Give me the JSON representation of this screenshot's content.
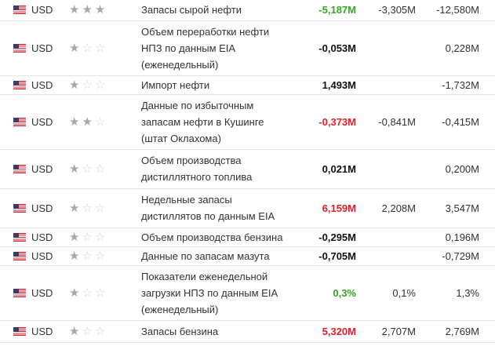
{
  "rows": [
    {
      "currency": "USD",
      "importance": 3,
      "event": [
        "Запасы сырой нефти"
      ],
      "actual": "-5,187M",
      "actual_color": "green",
      "forecast": "-3,305M",
      "previous": "-12,580M"
    },
    {
      "currency": "USD",
      "importance": 1,
      "event": [
        "Объем переработки нефти",
        "НПЗ по данным EIA",
        "(еженедельный)"
      ],
      "actual": "-0,053M",
      "actual_color": "black",
      "forecast": "",
      "previous": "0,228M"
    },
    {
      "currency": "USD",
      "importance": 1,
      "event": [
        "Импорт нефти"
      ],
      "actual": "1,493M",
      "actual_color": "black",
      "forecast": "",
      "previous": "-1,732M"
    },
    {
      "currency": "USD",
      "importance": 2,
      "event": [
        "Данные по избыточным",
        "запасам нефти в Кушинге",
        "(штат Оклахома)"
      ],
      "actual": "-0,373M",
      "actual_color": "red",
      "forecast": "-0,841M",
      "previous": "-0,415M"
    },
    {
      "currency": "USD",
      "importance": 1,
      "event": [
        "Объем производства",
        "дистиллятного топлива"
      ],
      "actual": "0,021M",
      "actual_color": "black",
      "forecast": "",
      "previous": "0,200M"
    },
    {
      "currency": "USD",
      "importance": 1,
      "event": [
        "Недельные запасы",
        "дистиллятов по данным EIA"
      ],
      "actual": "6,159M",
      "actual_color": "red",
      "forecast": "2,208M",
      "previous": "3,547M"
    },
    {
      "currency": "USD",
      "importance": 1,
      "event": [
        "Объем производства бензина"
      ],
      "actual": "-0,295M",
      "actual_color": "black",
      "forecast": "",
      "previous": "0,196M"
    },
    {
      "currency": "USD",
      "importance": 1,
      "event": [
        "Данные по запасам мазута"
      ],
      "actual": "-0,705M",
      "actual_color": "black",
      "forecast": "",
      "previous": "-0,729M"
    },
    {
      "currency": "USD",
      "importance": 1,
      "event": [
        "Показатели еженедельной",
        "загрузки НПЗ по данным EIA",
        "(еженедельный)"
      ],
      "actual": "0,3%",
      "actual_color": "green",
      "forecast": "0,1%",
      "previous": "1,3%"
    },
    {
      "currency": "USD",
      "importance": 1,
      "event": [
        "Запасы бензина"
      ],
      "actual": "5,320M",
      "actual_color": "red",
      "forecast": "2,707M",
      "previous": "2,769M"
    }
  ],
  "colors": {
    "green": "#3ba32a",
    "red": "#e3202a",
    "black": "#111111",
    "star_on": "#a8a8a8",
    "star_off": "#d4d4d4"
  },
  "icons": {
    "flag": "us-flag-icon",
    "star": "star-icon"
  }
}
